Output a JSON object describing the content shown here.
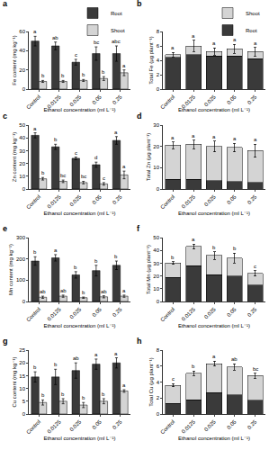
{
  "chart_data": [
    {
      "type": "bar",
      "title": "a",
      "x_label": "Ethanol concentration (ml L⁻¹)",
      "y_label": "Fe content (mg kg⁻¹)",
      "categories": [
        "Control",
        "0.0125",
        "0.025",
        "0.05",
        "0.25"
      ],
      "stacked": false,
      "legend": "top right",
      "ylim": [
        0,
        60
      ],
      "yticks": [
        0,
        20,
        40,
        60
      ],
      "series": [
        {
          "name": "Root",
          "color": "#3a3a3a",
          "values": [
            50,
            45,
            28,
            37,
            37
          ],
          "errors": [
            5,
            4,
            3,
            7,
            8
          ],
          "letters": [
            "a",
            "ab",
            "c",
            "bc",
            "abc"
          ]
        },
        {
          "name": "Shoot",
          "color": "#d4d4d4",
          "values": [
            8,
            8,
            9,
            11,
            17
          ],
          "errors": [
            1,
            1,
            1,
            2,
            3
          ],
          "letters": [
            "b",
            "b",
            "b",
            "b",
            "a"
          ]
        }
      ]
    },
    {
      "type": "bar",
      "title": "b",
      "x_label": "Ethanol concentration (ml L⁻¹)",
      "y_label": "Total Fe (μg plant⁻¹)",
      "categories": [
        "Control",
        "0.0125",
        "0.025",
        "0.05",
        "0.25"
      ],
      "stacked": true,
      "legend": "top right",
      "ylim": [
        0,
        8
      ],
      "yticks": [
        0,
        2,
        4,
        6,
        8
      ],
      "letters": [
        "a",
        "a",
        "a",
        "a",
        "a"
      ],
      "series": [
        {
          "name": "Root",
          "color": "#3a3a3a",
          "values": [
            4.4,
            4.8,
            4.6,
            4.6,
            4.2
          ]
        },
        {
          "name": "Shoot",
          "color": "#d4d4d4",
          "values": [
            0.4,
            1.2,
            0.6,
            1.0,
            1.0
          ],
          "errors": [
            0.3,
            0.8,
            0.5,
            0.6,
            0.6
          ]
        }
      ]
    },
    {
      "type": "bar",
      "title": "c",
      "x_label": "Ethanol concentration (ml L⁻¹)",
      "y_label": "Zn content (mg kg⁻¹)",
      "categories": [
        "Control",
        "0.0125",
        "0.025",
        "0.05",
        "0.25"
      ],
      "stacked": false,
      "ylim": [
        0,
        50
      ],
      "yticks": [
        0,
        10,
        20,
        30,
        40,
        50
      ],
      "series": [
        {
          "name": "Root",
          "color": "#3a3a3a",
          "values": [
            42,
            33,
            24,
            19,
            38
          ],
          "errors": [
            2,
            2,
            1,
            2,
            3
          ],
          "letters": [
            "a",
            "b",
            "c",
            "d",
            "a"
          ]
        },
        {
          "name": "Shoot",
          "color": "#d4d4d4",
          "values": [
            8,
            6,
            5,
            4,
            11
          ],
          "errors": [
            1,
            1,
            1,
            1,
            3
          ],
          "letters": [
            "b",
            "bc",
            "bc",
            "c",
            "a"
          ]
        }
      ]
    },
    {
      "type": "bar",
      "title": "d",
      "x_label": "Ethanol concentration (ml L⁻¹)",
      "y_label": "Total Zn (μg plant⁻¹)",
      "categories": [
        "Control",
        "0.0125",
        "0.025",
        "0.05",
        "0.25"
      ],
      "stacked": true,
      "ylim": [
        0,
        30
      ],
      "yticks": [
        0,
        10,
        20,
        30
      ],
      "letters": [
        "a",
        "a",
        "a",
        "a",
        "a"
      ],
      "series": [
        {
          "name": "Root",
          "color": "#3a3a3a",
          "values": [
            4.5,
            4.5,
            4,
            3.5,
            3
          ]
        },
        {
          "name": "Shoot",
          "color": "#d4d4d4",
          "values": [
            16,
            16.5,
            16,
            16,
            15
          ],
          "errors": [
            1.5,
            2,
            2.5,
            2,
            3
          ]
        }
      ]
    },
    {
      "type": "bar",
      "title": "e",
      "x_label": "Ethanol concentration (ml L⁻¹)",
      "y_label": "Mn content (mg kg⁻¹)",
      "categories": [
        "Control",
        "0.0125",
        "0.025",
        "0.05",
        "0.25"
      ],
      "stacked": false,
      "ylim": [
        0,
        300
      ],
      "yticks": [
        0,
        100,
        200,
        300
      ],
      "series": [
        {
          "name": "Root",
          "color": "#3a3a3a",
          "values": [
            190,
            205,
            125,
            145,
            170
          ],
          "errors": [
            20,
            15,
            15,
            25,
            20
          ],
          "letters": [
            "b",
            "a",
            "b",
            "b",
            "b"
          ]
        },
        {
          "name": "Shoot",
          "color": "#d4d4d4",
          "values": [
            20,
            25,
            18,
            22,
            25
          ],
          "errors": [
            5,
            5,
            3,
            5,
            5
          ],
          "letters": [
            "ab",
            "ab",
            "b",
            "ab",
            "a"
          ]
        }
      ]
    },
    {
      "type": "bar",
      "title": "f",
      "x_label": "Ethanol concentration (ml L⁻¹)",
      "y_label": "Total Mn (μg plant⁻¹)",
      "categories": [
        "Control",
        "0.0125",
        "0.025",
        "0.05",
        "0.25"
      ],
      "stacked": true,
      "ylim": [
        0,
        50
      ],
      "yticks": [
        0,
        10,
        20,
        30,
        40,
        50
      ],
      "letters": [
        "b",
        "a",
        "b",
        "b",
        "c"
      ],
      "series": [
        {
          "name": "Root",
          "color": "#3a3a3a",
          "values": [
            19,
            28,
            21,
            20,
            13
          ]
        },
        {
          "name": "Shoot",
          "color": "#d4d4d4",
          "values": [
            11,
            15,
            15,
            14,
            9
          ],
          "errors": [
            1,
            2,
            3,
            4,
            2
          ]
        }
      ]
    },
    {
      "type": "bar",
      "title": "g",
      "x_label": "Ethanol concentration (ml L⁻¹)",
      "y_label": "Cu content (mg kg⁻¹)",
      "categories": [
        "Control",
        "0.0125",
        "0.025",
        "0.05",
        "0.25"
      ],
      "stacked": false,
      "ylim": [
        0,
        25
      ],
      "yticks": [
        0,
        5,
        10,
        15,
        20,
        25
      ],
      "series": [
        {
          "name": "Root",
          "color": "#3a3a3a",
          "values": [
            14.5,
            14.5,
            17,
            19.5,
            20
          ],
          "errors": [
            2,
            3,
            3,
            2,
            2
          ],
          "letters": [
            "b",
            "b",
            "ab",
            "a",
            "a"
          ]
        },
        {
          "name": "Shoot",
          "color": "#d4d4d4",
          "values": [
            4.5,
            5,
            3.5,
            5,
            9
          ],
          "errors": [
            1,
            1,
            1,
            1,
            0.5
          ],
          "letters": [
            "b",
            "b",
            "b",
            "b",
            "a"
          ]
        }
      ]
    },
    {
      "type": "bar",
      "title": "h",
      "x_label": "Ethanol concentration (ml L⁻¹)",
      "y_label": "Total Cu (μg plant⁻¹)",
      "categories": [
        "Control",
        "0.0125",
        "0.025",
        "0.05",
        "0.25"
      ],
      "stacked": true,
      "ylim": [
        0,
        8
      ],
      "yticks": [
        0,
        2,
        4,
        6,
        8
      ],
      "letters": [
        "c",
        "b",
        "a",
        "ab",
        "bc"
      ],
      "series": [
        {
          "name": "Root",
          "color": "#3a3a3a",
          "values": [
            1.3,
            1.8,
            2.7,
            2.4,
            1.7
          ]
        },
        {
          "name": "Shoot",
          "color": "#d4d4d4",
          "values": [
            2.3,
            3.3,
            3.6,
            3.5,
            3.1
          ],
          "errors": [
            0.2,
            0.3,
            0.3,
            0.4,
            0.3
          ]
        }
      ]
    }
  ]
}
